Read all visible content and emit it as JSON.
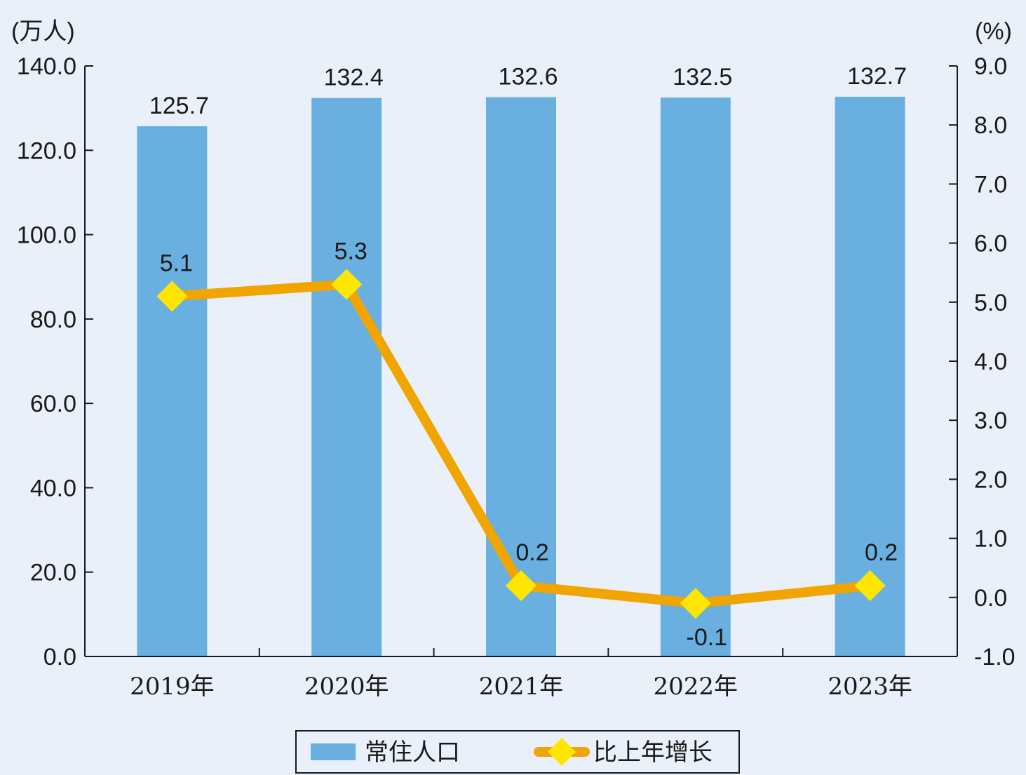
{
  "chart_data": {
    "type": "bar",
    "categories": [
      "2019年",
      "2020年",
      "2021年",
      "2022年",
      "2023年"
    ],
    "series": [
      {
        "name": "常住人口",
        "type": "bar",
        "axis": "left",
        "values": [
          125.7,
          132.4,
          132.6,
          132.5,
          132.7
        ],
        "labels": [
          "125.7",
          "132.4",
          "132.6",
          "132.5",
          "132.7"
        ],
        "color": "#69b0e1"
      },
      {
        "name": "比上年增长",
        "type": "line",
        "axis": "right",
        "values": [
          5.1,
          5.3,
          0.2,
          -0.1,
          0.2
        ],
        "labels": [
          "5.1",
          "5.3",
          "0.2",
          "-0.1",
          "0.2"
        ],
        "color": "#f0a500",
        "marker_color": "#ffe600"
      }
    ],
    "left_axis": {
      "unit": "(万人)",
      "ylim": [
        0,
        140
      ],
      "ticks": [
        "0.0",
        "20.0",
        "40.0",
        "60.0",
        "80.0",
        "100.0",
        "120.0",
        "140.0"
      ]
    },
    "right_axis": {
      "unit": "(%)",
      "ylim": [
        -1,
        9
      ],
      "ticks": [
        "-1.0",
        "0.0",
        "1.0",
        "2.0",
        "3.0",
        "4.0",
        "5.0",
        "6.0",
        "7.0",
        "8.0",
        "9.0"
      ]
    },
    "legend": {
      "position": "bottom",
      "entries": [
        "常住人口",
        "比上年增长"
      ]
    },
    "grid": false
  }
}
